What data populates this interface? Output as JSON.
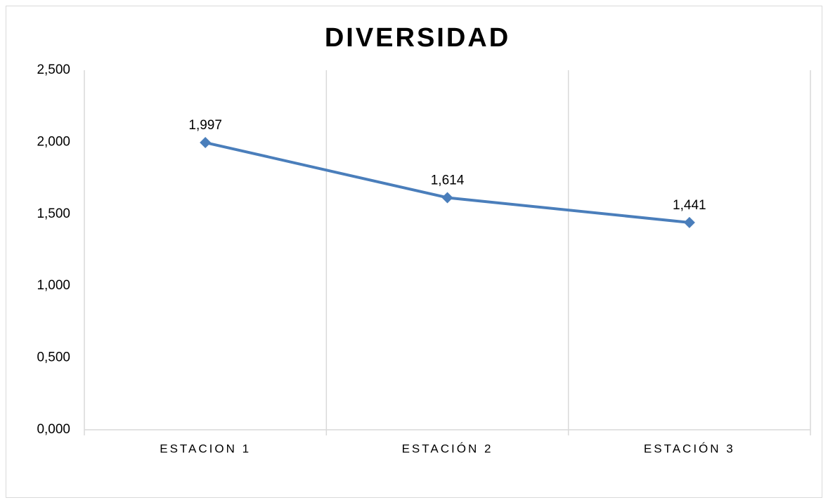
{
  "chart_data": {
    "type": "line",
    "title": "DIVERSIDAD",
    "categories": [
      "ESTACION 1",
      "ESTACIÓN 2",
      "ESTACIÓN 3"
    ],
    "series": [
      {
        "color": "#4a7ebb",
        "values": [
          1.997,
          1.614,
          1.441
        ],
        "value_labels": [
          "1,997",
          "1,614",
          "1,441"
        ]
      }
    ],
    "ylim": [
      0,
      2.5
    ],
    "yticks": [
      {
        "value": 0,
        "label": "0,000"
      },
      {
        "value": 0.5,
        "label": "0,500"
      },
      {
        "value": 1,
        "label": "1,000"
      },
      {
        "value": 1.5,
        "label": "1,500"
      },
      {
        "value": 2,
        "label": "2,000"
      },
      {
        "value": 2.5,
        "label": "2,500"
      }
    ],
    "grid": true
  }
}
